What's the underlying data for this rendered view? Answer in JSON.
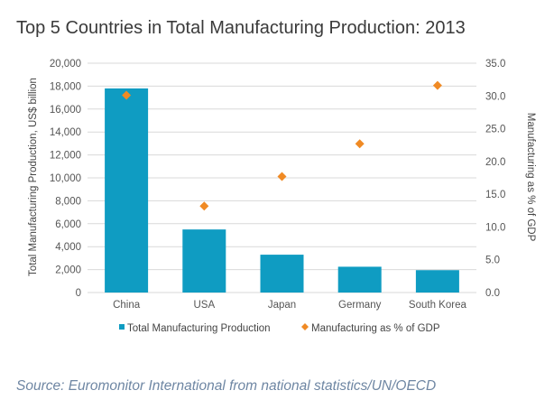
{
  "chart_data": {
    "type": "bar",
    "title": "Top 5 Countries in Total Manufacturing Production: 2013",
    "categories": [
      "China",
      "USA",
      "Japan",
      "Germany",
      "South Korea"
    ],
    "series": [
      {
        "name": "Total Manufacturing Production",
        "type": "bar",
        "axis": "left",
        "color": "#0f9cc2",
        "values": [
          17800,
          5500,
          3300,
          2250,
          1950
        ]
      },
      {
        "name": "Manufacturing as % of GDP",
        "type": "scatter",
        "axis": "right",
        "color": "#f08a24",
        "marker": "diamond",
        "values": [
          30.1,
          13.2,
          17.7,
          22.7,
          31.6
        ]
      }
    ],
    "ylabel": "Total Manufacturing Production, US$ billion",
    "y2label": "Manufacturing as % of GDP",
    "ylim": [
      0,
      20000
    ],
    "y2lim": [
      0,
      35
    ],
    "yticks": [
      "0",
      "2,000",
      "4,000",
      "6,000",
      "8,000",
      "10,000",
      "12,000",
      "14,000",
      "16,000",
      "18,000",
      "20,000"
    ],
    "y2ticks": [
      "0.0",
      "5.0",
      "10.0",
      "15.0",
      "20.0",
      "25.0",
      "30.0",
      "35.0"
    ],
    "grid": true,
    "legend": "bottom"
  },
  "source": "Source: Euromonitor International from national statistics/UN/OECD"
}
